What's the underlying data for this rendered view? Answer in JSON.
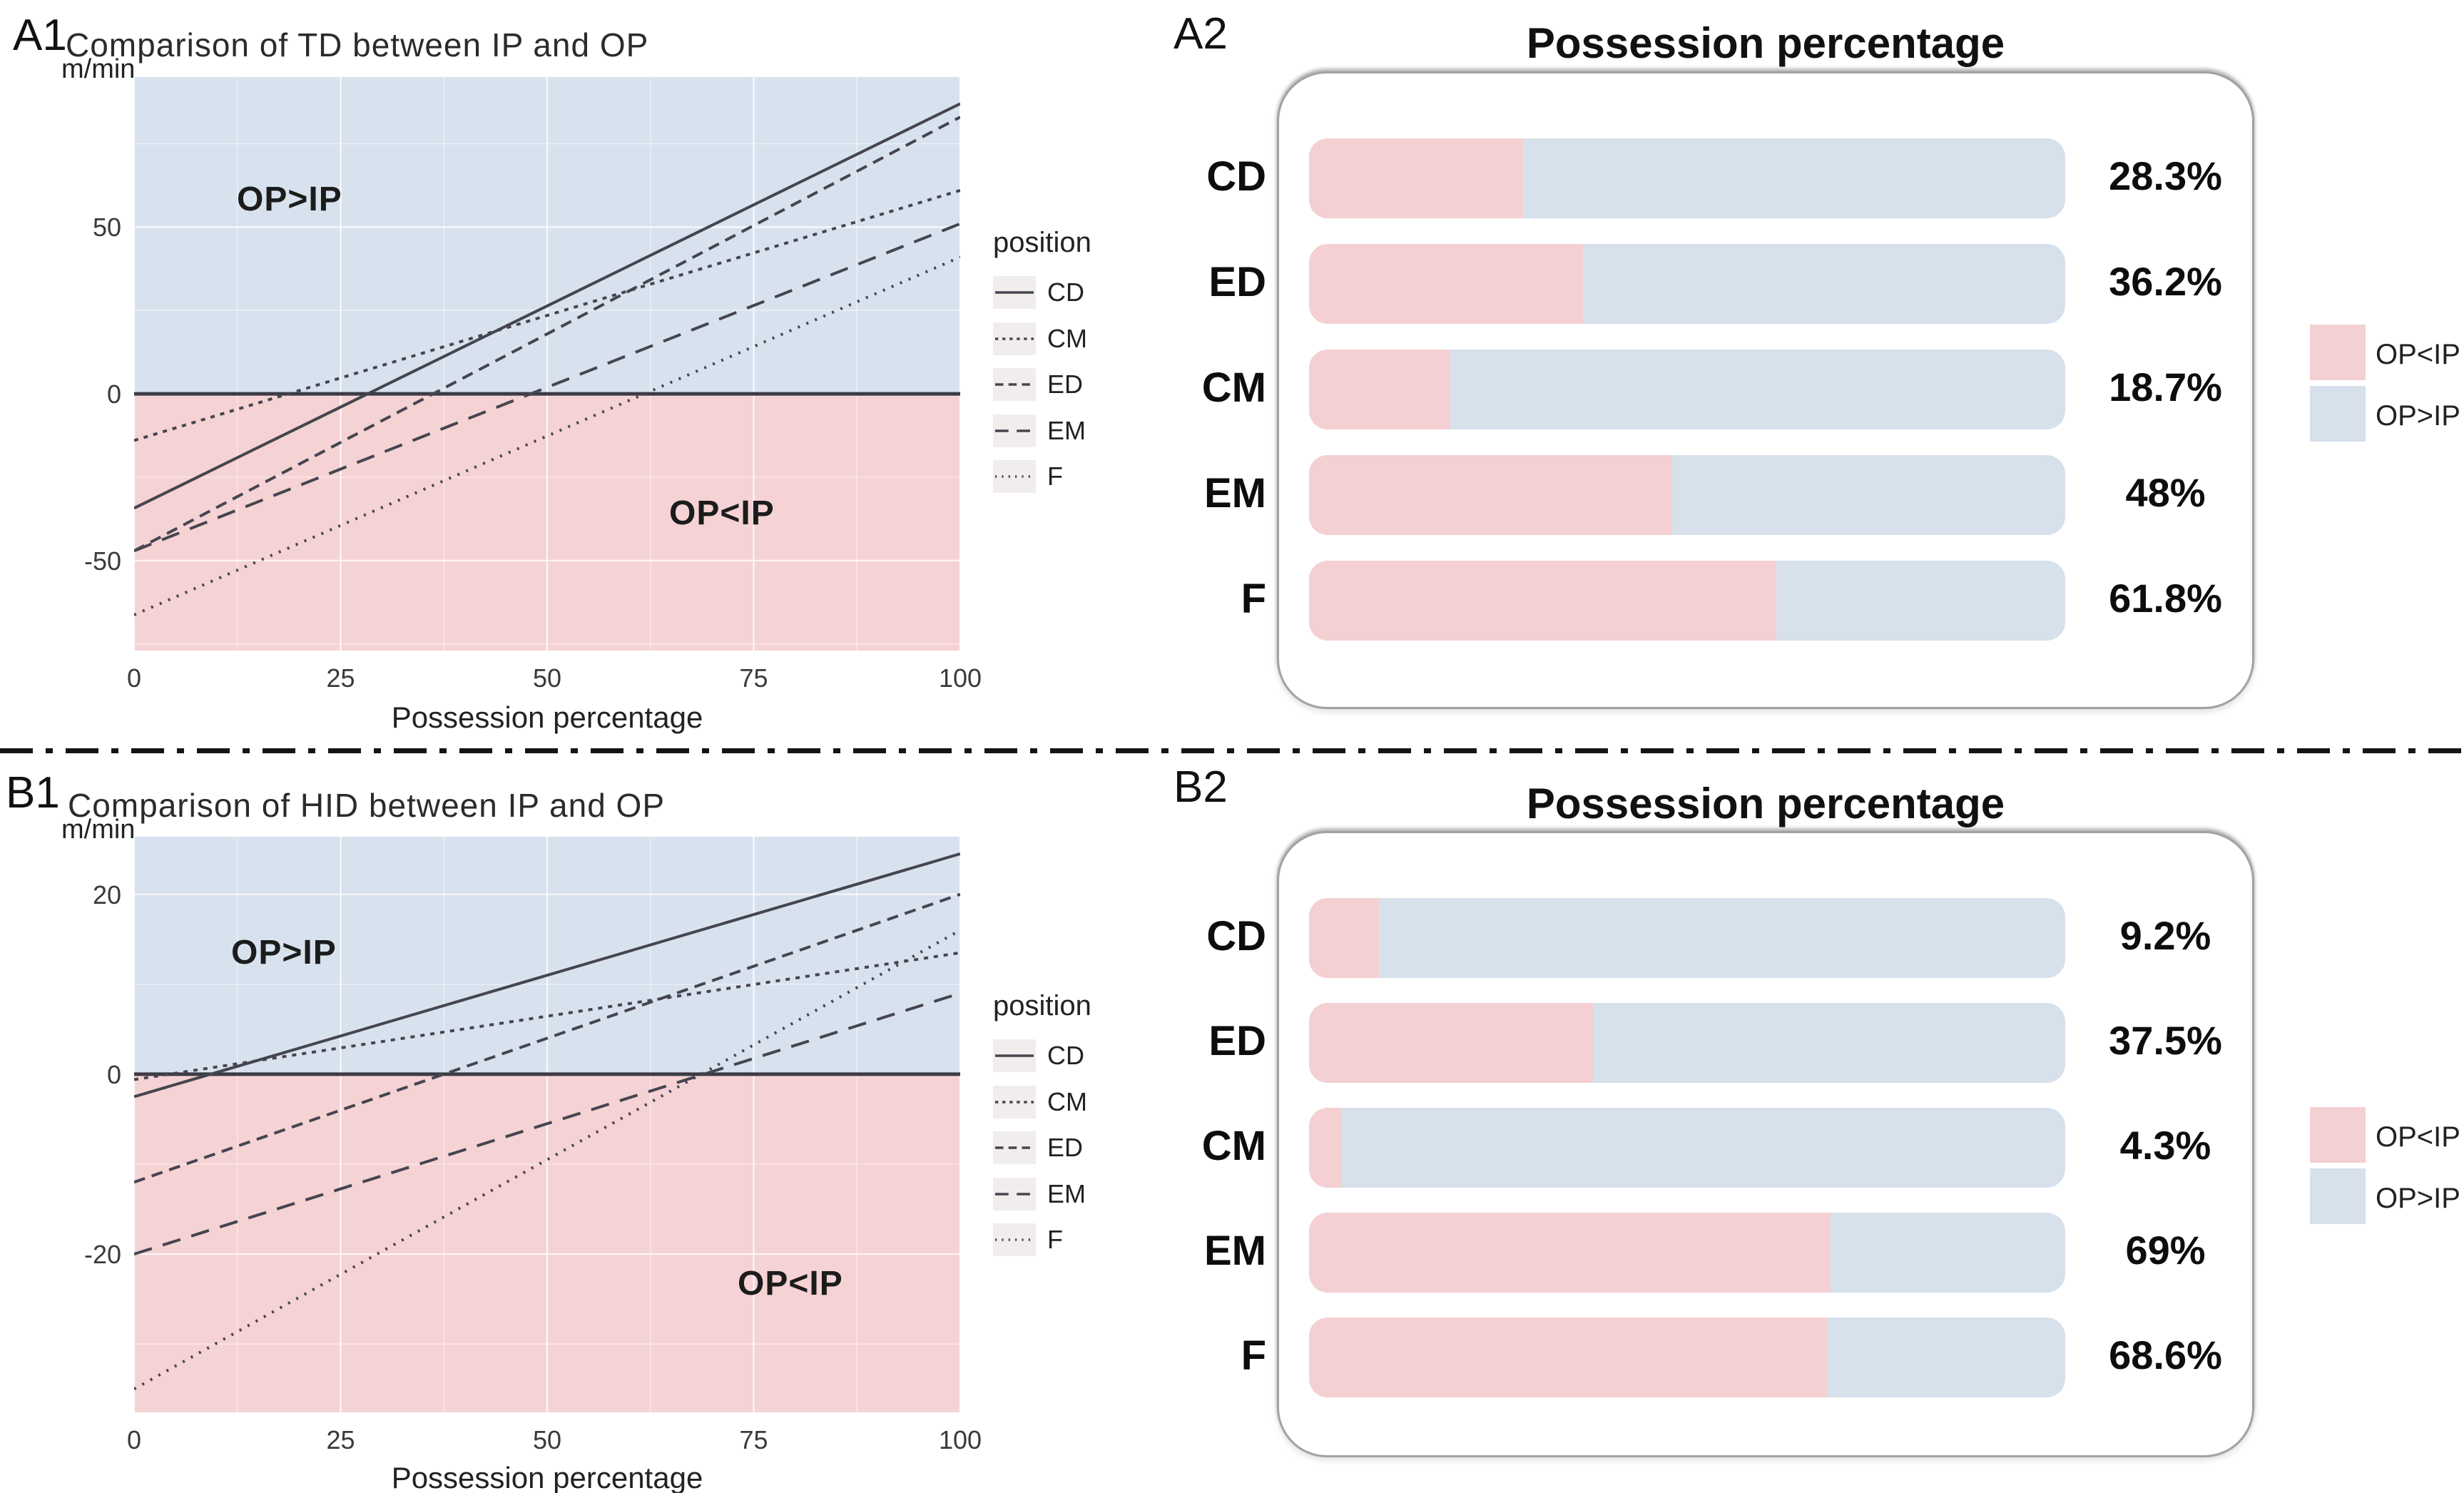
{
  "colors": {
    "bar_pink": "#f4d0d3",
    "bar_blue": "#d7e1ec",
    "region_pink": "#f5d2d4",
    "region_blue": "#d8e2ee",
    "line": "#45454f",
    "zero_line": "#3b3b44"
  },
  "panels": {
    "A1": {
      "label": "A1",
      "title": "Comparison of TD between IP and OP",
      "y_unit": "m/min",
      "x_label": "Possession percentage",
      "region_top": "OP>IP",
      "region_bottom": "OP<IP",
      "legend_title": "position"
    },
    "A2": {
      "label": "A2",
      "title": "Possession percentage"
    },
    "B1": {
      "label": "B1",
      "title": "Comparison of HID between IP and OP",
      "y_unit": "m/min",
      "x_label": "Possession percentage",
      "region_top": "OP>IP",
      "region_bottom": "OP<IP",
      "legend_title": "position"
    },
    "B2": {
      "label": "B2",
      "title": "Possession percentage"
    }
  },
  "chart_data": [
    {
      "id": "A1",
      "type": "line",
      "title": "Comparison of TD between IP and OP",
      "xlabel": "Possession percentage",
      "ylabel": "m/min",
      "xlim": [
        0,
        100
      ],
      "ylim": [
        -77,
        95
      ],
      "xticks": [
        0,
        25,
        50,
        75,
        100
      ],
      "yticks": [
        50,
        0,
        -50
      ],
      "minor_xticks": [
        12.5,
        37.5,
        62.5,
        87.5
      ],
      "minor_yticks": [
        75,
        25,
        -25,
        -75
      ],
      "legend_title": "position",
      "annotations": [
        "OP>IP",
        "OP<IP"
      ],
      "series": [
        {
          "name": "CD",
          "style": "solid",
          "x": [
            0,
            100
          ],
          "y": [
            -34.3,
            87
          ]
        },
        {
          "name": "CM",
          "style": "dashed-short",
          "x": [
            0,
            100
          ],
          "y": [
            -14.0,
            61
          ]
        },
        {
          "name": "ED",
          "style": "dashed",
          "x": [
            0,
            100
          ],
          "y": [
            -47.1,
            83
          ]
        },
        {
          "name": "EM",
          "style": "dashed-long",
          "x": [
            0,
            100
          ],
          "y": [
            -47.1,
            51
          ]
        },
        {
          "name": "F",
          "style": "dotted",
          "x": [
            0,
            100
          ],
          "y": [
            -66.3,
            41
          ]
        }
      ]
    },
    {
      "id": "A2",
      "type": "bar",
      "title": "Possession percentage",
      "categories": [
        "CD",
        "ED",
        "CM",
        "EM",
        "F"
      ],
      "values": [
        28.3,
        36.2,
        18.7,
        48,
        61.8
      ],
      "value_labels": [
        "28.3%",
        "36.2%",
        "18.7%",
        "48%",
        "61.8%"
      ],
      "xlim": [
        0,
        100
      ],
      "legend": [
        {
          "label": "OP<IP",
          "color_key": "bar_pink"
        },
        {
          "label": "OP>IP",
          "color_key": "bar_blue"
        }
      ]
    },
    {
      "id": "B1",
      "type": "line",
      "title": "Comparison of HID between IP and OP",
      "xlabel": "Possession percentage",
      "ylabel": "m/min",
      "xlim": [
        0,
        100
      ],
      "ylim": [
        -37.6,
        26.4
      ],
      "xticks": [
        0,
        25,
        50,
        75,
        100
      ],
      "yticks": [
        20,
        0,
        -20
      ],
      "minor_xticks": [
        12.5,
        37.5,
        62.5,
        87.5
      ],
      "minor_yticks": [
        10,
        -10,
        -30
      ],
      "legend_title": "position",
      "annotations": [
        "OP>IP",
        "OP<IP"
      ],
      "series": [
        {
          "name": "CD",
          "style": "solid",
          "x": [
            0,
            100
          ],
          "y": [
            -2.5,
            24.5
          ]
        },
        {
          "name": "CM",
          "style": "dashed-short",
          "x": [
            0,
            100
          ],
          "y": [
            -0.6,
            13.5
          ]
        },
        {
          "name": "ED",
          "style": "dashed",
          "x": [
            0,
            100
          ],
          "y": [
            -12.0,
            20
          ]
        },
        {
          "name": "EM",
          "style": "dashed-long",
          "x": [
            0,
            100
          ],
          "y": [
            -20.0,
            9
          ]
        },
        {
          "name": "F",
          "style": "dotted",
          "x": [
            0,
            100
          ],
          "y": [
            -35.0,
            16
          ]
        }
      ]
    },
    {
      "id": "B2",
      "type": "bar",
      "title": "Possession percentage",
      "categories": [
        "CD",
        "ED",
        "CM",
        "EM",
        "F"
      ],
      "values": [
        9.2,
        37.5,
        4.3,
        69,
        68.6
      ],
      "value_labels": [
        "9.2%",
        "37.5%",
        "4.3%",
        "69%",
        "68.6%"
      ],
      "xlim": [
        0,
        100
      ],
      "legend": [
        {
          "label": "OP<IP",
          "color_key": "bar_pink"
        },
        {
          "label": "OP>IP",
          "color_key": "bar_blue"
        }
      ]
    }
  ]
}
